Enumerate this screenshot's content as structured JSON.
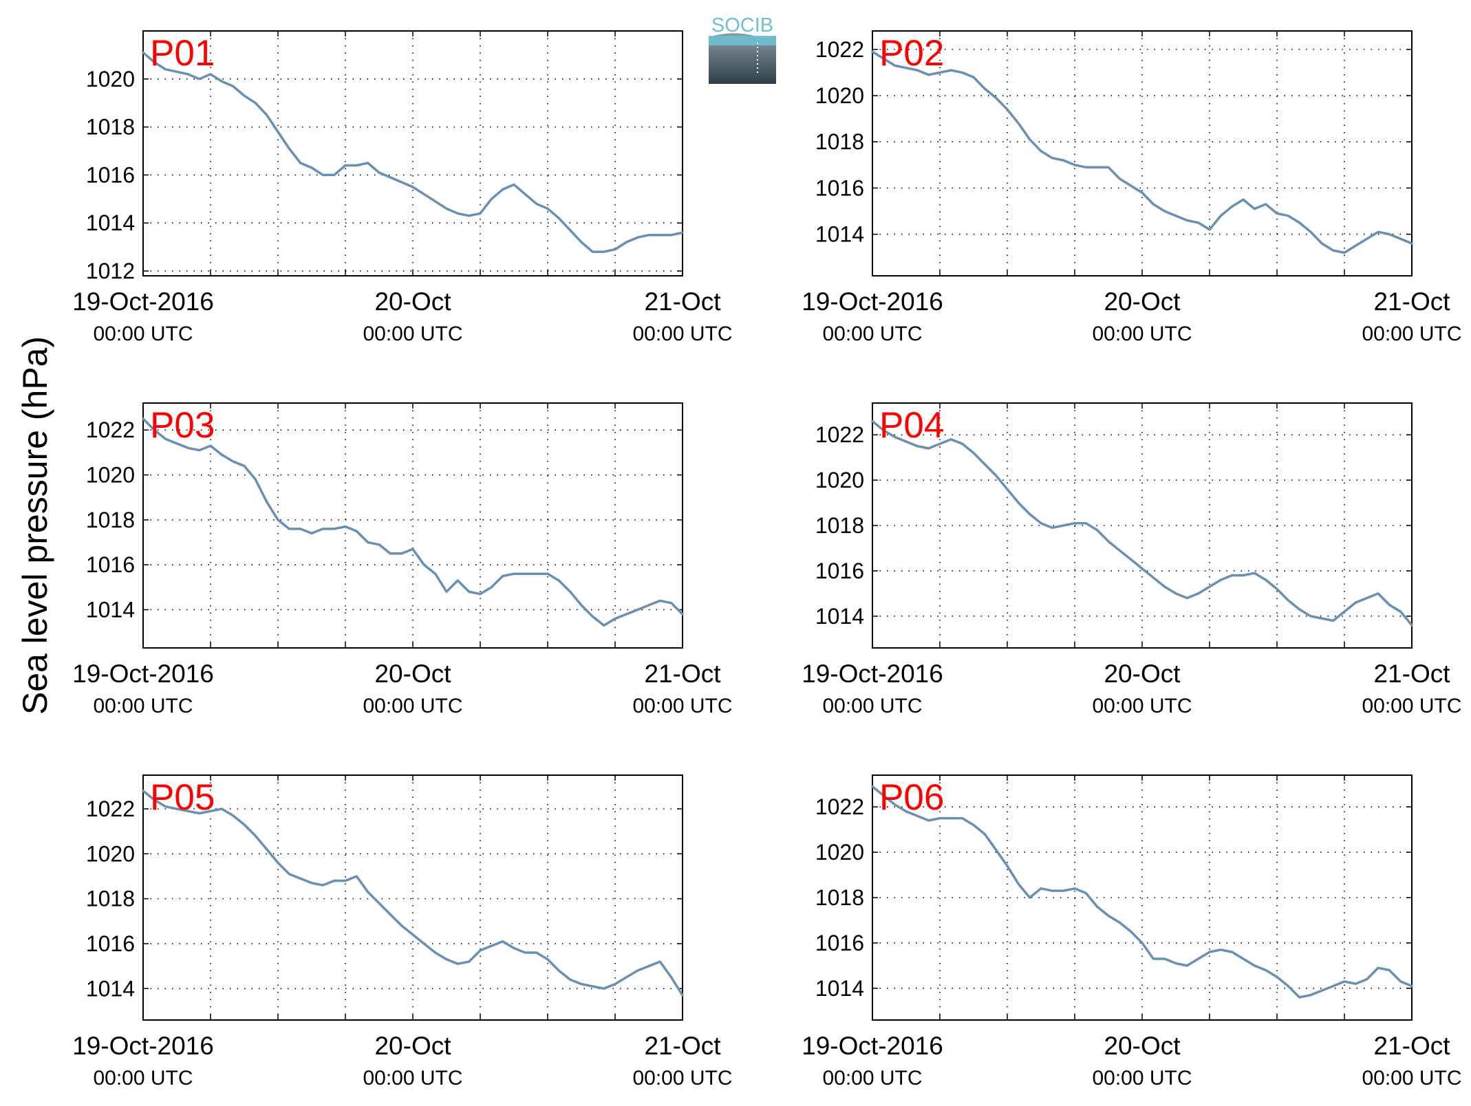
{
  "figure": {
    "ylabel": "Sea level pressure (hPa)",
    "logo_text": "SOCIB"
  },
  "chart_data": [
    {
      "type": "line",
      "title": "P01",
      "ylabel": "Sea level pressure (hPa)",
      "xlim": [
        0,
        48
      ],
      "ylim": [
        1011.8,
        1022.0
      ],
      "yticks": [
        1012,
        1014,
        1016,
        1018,
        1020
      ],
      "xticks": [
        0,
        24,
        48
      ],
      "xtick_labels": [
        [
          "19-Oct-2016",
          "00:00 UTC"
        ],
        [
          "20-Oct",
          "00:00 UTC"
        ],
        [
          "21-Oct",
          "00:00 UTC"
        ]
      ],
      "grid": true,
      "x": [
        0,
        1,
        2,
        3,
        4,
        5,
        6,
        7,
        8,
        9,
        10,
        11,
        12,
        13,
        14,
        15,
        16,
        17,
        18,
        19,
        20,
        21,
        22,
        23,
        24,
        25,
        26,
        27,
        28,
        29,
        30,
        31,
        32,
        33,
        34,
        35,
        36,
        37,
        38,
        39,
        40,
        41,
        42,
        43,
        44,
        45,
        46,
        47,
        48
      ],
      "series": [
        {
          "values": [
            1021.1,
            1020.7,
            1020.4,
            1020.3,
            1020.2,
            1020.0,
            1020.2,
            1019.9,
            1019.7,
            1019.3,
            1019.0,
            1018.5,
            1017.8,
            1017.1,
            1016.5,
            1016.3,
            1016.0,
            1016.0,
            1016.4,
            1016.4,
            1016.5,
            1016.1,
            1015.9,
            1015.7,
            1015.5,
            1015.2,
            1014.9,
            1014.6,
            1014.4,
            1014.3,
            1014.4,
            1015.0,
            1015.4,
            1015.6,
            1015.2,
            1014.8,
            1014.6,
            1014.2,
            1013.7,
            1013.2,
            1012.8,
            1012.8,
            1012.9,
            1013.2,
            1013.4,
            1013.5,
            1013.5,
            1013.5,
            1013.6
          ]
        }
      ]
    },
    {
      "type": "line",
      "title": "P02",
      "ylabel": "Sea level pressure (hPa)",
      "xlim": [
        0,
        48
      ],
      "ylim": [
        1012.2,
        1022.8
      ],
      "yticks": [
        1014,
        1016,
        1018,
        1020,
        1022
      ],
      "xticks": [
        0,
        24,
        48
      ],
      "xtick_labels": [
        [
          "19-Oct-2016",
          "00:00 UTC"
        ],
        [
          "20-Oct",
          "00:00 UTC"
        ],
        [
          "21-Oct",
          "00:00 UTC"
        ]
      ],
      "grid": true,
      "x": [
        0,
        1,
        2,
        3,
        4,
        5,
        6,
        7,
        8,
        9,
        10,
        11,
        12,
        13,
        14,
        15,
        16,
        17,
        18,
        19,
        20,
        21,
        22,
        23,
        24,
        25,
        26,
        27,
        28,
        29,
        30,
        31,
        32,
        33,
        34,
        35,
        36,
        37,
        38,
        39,
        40,
        41,
        42,
        43,
        44,
        45,
        46,
        47,
        48
      ],
      "series": [
        {
          "values": [
            1021.9,
            1021.6,
            1021.3,
            1021.2,
            1021.1,
            1020.9,
            1021.0,
            1021.1,
            1021.0,
            1020.8,
            1020.3,
            1019.9,
            1019.4,
            1018.8,
            1018.1,
            1017.6,
            1017.3,
            1017.2,
            1017.0,
            1016.9,
            1016.9,
            1016.9,
            1016.4,
            1016.1,
            1015.8,
            1015.3,
            1015.0,
            1014.8,
            1014.6,
            1014.5,
            1014.2,
            1014.8,
            1015.2,
            1015.5,
            1015.1,
            1015.3,
            1014.9,
            1014.8,
            1014.5,
            1014.1,
            1013.6,
            1013.3,
            1013.2,
            1013.5,
            1013.8,
            1014.1,
            1014.0,
            1013.8,
            1013.6
          ]
        }
      ]
    },
    {
      "type": "line",
      "title": "P03",
      "ylabel": "Sea level pressure (hPa)",
      "xlim": [
        0,
        48
      ],
      "ylim": [
        1012.3,
        1023.2
      ],
      "yticks": [
        1014,
        1016,
        1018,
        1020,
        1022
      ],
      "xticks": [
        0,
        24,
        48
      ],
      "xtick_labels": [
        [
          "19-Oct-2016",
          "00:00 UTC"
        ],
        [
          "20-Oct",
          "00:00 UTC"
        ],
        [
          "21-Oct",
          "00:00 UTC"
        ]
      ],
      "grid": true,
      "x": [
        0,
        1,
        2,
        3,
        4,
        5,
        6,
        7,
        8,
        9,
        10,
        11,
        12,
        13,
        14,
        15,
        16,
        17,
        18,
        19,
        20,
        21,
        22,
        23,
        24,
        25,
        26,
        27,
        28,
        29,
        30,
        31,
        32,
        33,
        34,
        35,
        36,
        37,
        38,
        39,
        40,
        41,
        42,
        43,
        44,
        45,
        46,
        47,
        48
      ],
      "series": [
        {
          "values": [
            1022.5,
            1022.0,
            1021.6,
            1021.4,
            1021.2,
            1021.1,
            1021.3,
            1020.9,
            1020.6,
            1020.4,
            1019.8,
            1018.8,
            1018.0,
            1017.6,
            1017.6,
            1017.4,
            1017.6,
            1017.6,
            1017.7,
            1017.5,
            1017.0,
            1016.9,
            1016.5,
            1016.5,
            1016.7,
            1016.0,
            1015.6,
            1014.8,
            1015.3,
            1014.8,
            1014.7,
            1015.0,
            1015.5,
            1015.6,
            1015.6,
            1015.6,
            1015.6,
            1015.3,
            1014.8,
            1014.2,
            1013.7,
            1013.3,
            1013.6,
            1013.8,
            1014.0,
            1014.2,
            1014.4,
            1014.3,
            1013.8
          ]
        }
      ]
    },
    {
      "type": "line",
      "title": "P04",
      "ylabel": "Sea level pressure (hPa)",
      "xlim": [
        0,
        48
      ],
      "ylim": [
        1012.6,
        1023.4
      ],
      "yticks": [
        1014,
        1016,
        1018,
        1020,
        1022
      ],
      "xticks": [
        0,
        24,
        48
      ],
      "xtick_labels": [
        [
          "19-Oct-2016",
          "00:00 UTC"
        ],
        [
          "20-Oct",
          "00:00 UTC"
        ],
        [
          "21-Oct",
          "00:00 UTC"
        ]
      ],
      "grid": true,
      "x": [
        0,
        1,
        2,
        3,
        4,
        5,
        6,
        7,
        8,
        9,
        10,
        11,
        12,
        13,
        14,
        15,
        16,
        17,
        18,
        19,
        20,
        21,
        22,
        23,
        24,
        25,
        26,
        27,
        28,
        29,
        30,
        31,
        32,
        33,
        34,
        35,
        36,
        37,
        38,
        39,
        40,
        41,
        42,
        43,
        44,
        45,
        46,
        47,
        48
      ],
      "series": [
        {
          "values": [
            1022.6,
            1022.2,
            1021.9,
            1021.7,
            1021.5,
            1021.4,
            1021.6,
            1021.8,
            1021.6,
            1021.2,
            1020.7,
            1020.2,
            1019.6,
            1019.0,
            1018.5,
            1018.1,
            1017.9,
            1018.0,
            1018.1,
            1018.1,
            1017.8,
            1017.3,
            1016.9,
            1016.5,
            1016.1,
            1015.7,
            1015.3,
            1015.0,
            1014.8,
            1015.0,
            1015.3,
            1015.6,
            1015.8,
            1015.8,
            1015.9,
            1015.6,
            1015.2,
            1014.7,
            1014.3,
            1014.0,
            1013.9,
            1013.8,
            1014.2,
            1014.6,
            1014.8,
            1015.0,
            1014.5,
            1014.2,
            1013.6
          ]
        }
      ]
    },
    {
      "type": "line",
      "title": "P05",
      "ylabel": "Sea level pressure (hPa)",
      "xlim": [
        0,
        48
      ],
      "ylim": [
        1012.6,
        1023.5
      ],
      "yticks": [
        1014,
        1016,
        1018,
        1020,
        1022
      ],
      "xticks": [
        0,
        24,
        48
      ],
      "xtick_labels": [
        [
          "19-Oct-2016",
          "00:00 UTC"
        ],
        [
          "20-Oct",
          "00:00 UTC"
        ],
        [
          "21-Oct",
          "00:00 UTC"
        ]
      ],
      "grid": true,
      "x": [
        0,
        1,
        2,
        3,
        4,
        5,
        6,
        7,
        8,
        9,
        10,
        11,
        12,
        13,
        14,
        15,
        16,
        17,
        18,
        19,
        20,
        21,
        22,
        23,
        24,
        25,
        26,
        27,
        28,
        29,
        30,
        31,
        32,
        33,
        34,
        35,
        36,
        37,
        38,
        39,
        40,
        41,
        42,
        43,
        44,
        45,
        46,
        47,
        48
      ],
      "series": [
        {
          "values": [
            1022.8,
            1022.4,
            1022.1,
            1022.0,
            1021.9,
            1021.8,
            1021.9,
            1022.0,
            1021.7,
            1021.3,
            1020.8,
            1020.2,
            1019.6,
            1019.1,
            1018.9,
            1018.7,
            1018.6,
            1018.8,
            1018.8,
            1019.0,
            1018.3,
            1017.8,
            1017.3,
            1016.8,
            1016.4,
            1016.0,
            1015.6,
            1015.3,
            1015.1,
            1015.2,
            1015.7,
            1015.9,
            1016.1,
            1015.8,
            1015.6,
            1015.6,
            1015.3,
            1014.8,
            1014.4,
            1014.2,
            1014.1,
            1014.0,
            1014.2,
            1014.5,
            1014.8,
            1015.0,
            1015.2,
            1014.5,
            1013.7
          ]
        }
      ]
    },
    {
      "type": "line",
      "title": "P06",
      "ylabel": "Sea level pressure (hPa)",
      "xlim": [
        0,
        48
      ],
      "ylim": [
        1012.6,
        1023.4
      ],
      "yticks": [
        1014,
        1016,
        1018,
        1020,
        1022
      ],
      "xticks": [
        0,
        24,
        48
      ],
      "xtick_labels": [
        [
          "19-Oct-2016",
          "00:00 UTC"
        ],
        [
          "20-Oct",
          "00:00 UTC"
        ],
        [
          "21-Oct",
          "00:00 UTC"
        ]
      ],
      "grid": true,
      "x": [
        0,
        1,
        2,
        3,
        4,
        5,
        6,
        7,
        8,
        9,
        10,
        11,
        12,
        13,
        14,
        15,
        16,
        17,
        18,
        19,
        20,
        21,
        22,
        23,
        24,
        25,
        26,
        27,
        28,
        29,
        30,
        31,
        32,
        33,
        34,
        35,
        36,
        37,
        38,
        39,
        40,
        41,
        42,
        43,
        44,
        45,
        46,
        47,
        48
      ],
      "series": [
        {
          "values": [
            1022.9,
            1022.5,
            1022.1,
            1021.8,
            1021.6,
            1021.4,
            1021.5,
            1021.5,
            1021.5,
            1021.2,
            1020.8,
            1020.1,
            1019.4,
            1018.6,
            1018.0,
            1018.4,
            1018.3,
            1018.3,
            1018.4,
            1018.2,
            1017.6,
            1017.2,
            1016.9,
            1016.5,
            1016.0,
            1015.3,
            1015.3,
            1015.1,
            1015.0,
            1015.3,
            1015.6,
            1015.7,
            1015.6,
            1015.3,
            1015.0,
            1014.8,
            1014.5,
            1014.1,
            1013.6,
            1013.7,
            1013.9,
            1014.1,
            1014.3,
            1014.2,
            1014.4,
            1014.9,
            1014.8,
            1014.3,
            1014.1
          ]
        }
      ]
    }
  ]
}
